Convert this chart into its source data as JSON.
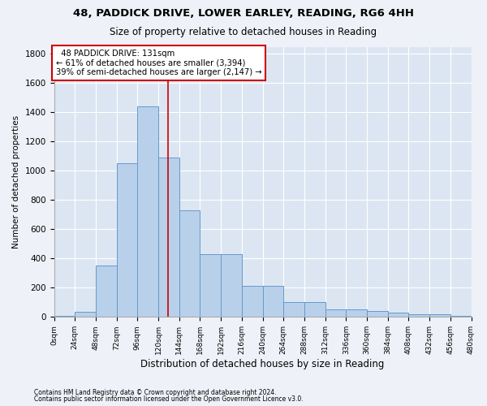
{
  "title1": "48, PADDICK DRIVE, LOWER EARLEY, READING, RG6 4HH",
  "title2": "Size of property relative to detached houses in Reading",
  "xlabel": "Distribution of detached houses by size in Reading",
  "ylabel": "Number of detached properties",
  "footnote1": "Contains HM Land Registry data © Crown copyright and database right 2024.",
  "footnote2": "Contains public sector information licensed under the Open Government Licence v3.0.",
  "bin_edges": [
    0,
    24,
    48,
    72,
    96,
    120,
    144,
    168,
    192,
    216,
    240,
    264,
    288,
    312,
    336,
    360,
    384,
    408,
    432,
    456,
    480
  ],
  "bar_heights": [
    10,
    35,
    350,
    1050,
    1440,
    1090,
    730,
    430,
    430,
    215,
    215,
    100,
    100,
    50,
    50,
    40,
    30,
    20,
    20,
    5
  ],
  "bar_color": "#b8d0ea",
  "bar_edge_color": "#6699cc",
  "vline_x": 131,
  "vline_color": "#cc0000",
  "annotation_text": "  48 PADDICK DRIVE: 131sqm\n← 61% of detached houses are smaller (3,394)\n39% of semi-detached houses are larger (2,147) →",
  "annotation_box_color": "#cc0000",
  "ylim": [
    0,
    1850
  ],
  "yticks": [
    0,
    200,
    400,
    600,
    800,
    1000,
    1200,
    1400,
    1600,
    1800
  ],
  "background_color": "#eef2f8",
  "plot_bg_color": "#dce6f2",
  "grid_color": "#ffffff",
  "title1_fontsize": 9.5,
  "title2_fontsize": 8.5,
  "xlabel_fontsize": 8.5,
  "ylabel_fontsize": 7.5,
  "xtick_fontsize": 6.5,
  "ytick_fontsize": 7.5,
  "footnote_fontsize": 5.5
}
